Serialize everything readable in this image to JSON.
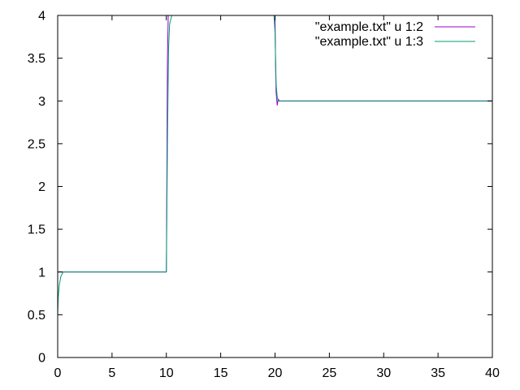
{
  "chart_data": {
    "type": "line",
    "title": "",
    "xlabel": "",
    "ylabel": "",
    "xlim": [
      0,
      40
    ],
    "ylim": [
      0,
      4
    ],
    "x_ticks": [
      0,
      5,
      10,
      15,
      20,
      25,
      30,
      35,
      40
    ],
    "y_ticks": [
      0,
      0.5,
      1,
      1.5,
      2,
      2.5,
      3,
      3.5,
      4
    ],
    "x_tick_labels": [
      "0",
      "5",
      "10",
      "15",
      "20",
      "25",
      "30",
      "35",
      "40"
    ],
    "y_tick_labels": [
      "0",
      "0.5",
      "1",
      "1.5",
      "2",
      "2.5",
      "3",
      "3.5",
      "4"
    ],
    "grid": false,
    "legend_position": "top-right",
    "series": [
      {
        "name": "\"example.txt\" u 1:2",
        "color": "#9400d3",
        "x": [
          0,
          0.05,
          1,
          9.9,
          10.0,
          10.05,
          10.1,
          10.2,
          10.3,
          10.4,
          10.6,
          19.9,
          20.0,
          20.05,
          20.1,
          20.2,
          20.3,
          20.4,
          20.6,
          40
        ],
        "y": [
          1.0,
          1.0,
          1.0,
          1.0,
          1.0,
          2.2,
          3.5,
          4.2,
          4.1,
          4.0,
          4.0,
          4.0,
          4.0,
          3.4,
          3.1,
          2.95,
          3.02,
          3.0,
          3.0,
          3.0
        ]
      },
      {
        "name": "\"example.txt\" u 1:3",
        "color": "#009e73",
        "x": [
          0,
          0.05,
          0.15,
          0.3,
          0.5,
          1.0,
          9.9,
          10.0,
          10.1,
          10.2,
          10.3,
          10.5,
          10.8,
          19.9,
          20.0,
          20.1,
          20.2,
          20.3,
          20.5,
          40
        ],
        "y": [
          0.5,
          0.7,
          0.85,
          0.95,
          1.0,
          1.0,
          1.0,
          1.0,
          2.5,
          3.6,
          3.9,
          4.0,
          4.0,
          4.0,
          3.8,
          3.2,
          3.05,
          3.0,
          3.0,
          3.0
        ]
      }
    ]
  }
}
